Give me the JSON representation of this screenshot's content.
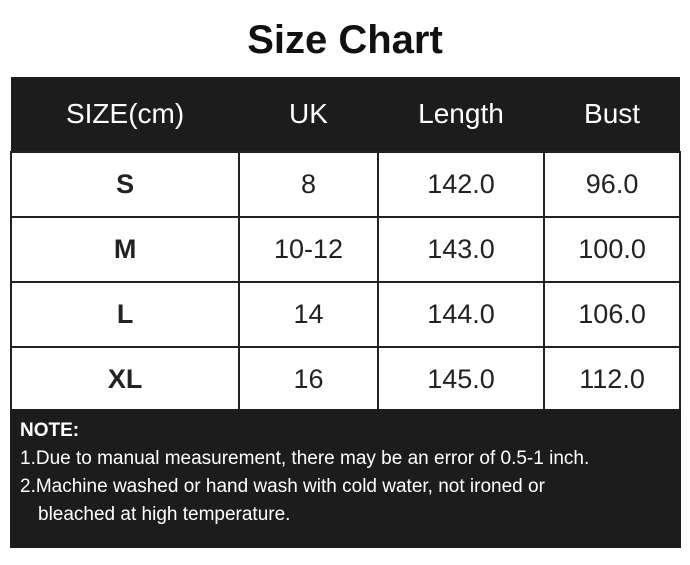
{
  "title": "Size Chart",
  "headers": [
    "SIZE(cm)",
    "UK",
    "Length",
    "Bust"
  ],
  "rows": [
    [
      "S",
      "8",
      "142.0",
      "96.0"
    ],
    [
      "M",
      "10-12",
      "143.0",
      "100.0"
    ],
    [
      "L",
      "14",
      "144.0",
      "106.0"
    ],
    [
      "XL",
      "16",
      "145.0",
      "112.0"
    ]
  ],
  "note": {
    "heading": "NOTE:",
    "line1": "1.Due to manual measurement, there may be an error of 0.5-1 inch.",
    "line2": "2.Machine washed or hand wash with cold water, not ironed or",
    "line2b": "bleached at high temperature."
  }
}
